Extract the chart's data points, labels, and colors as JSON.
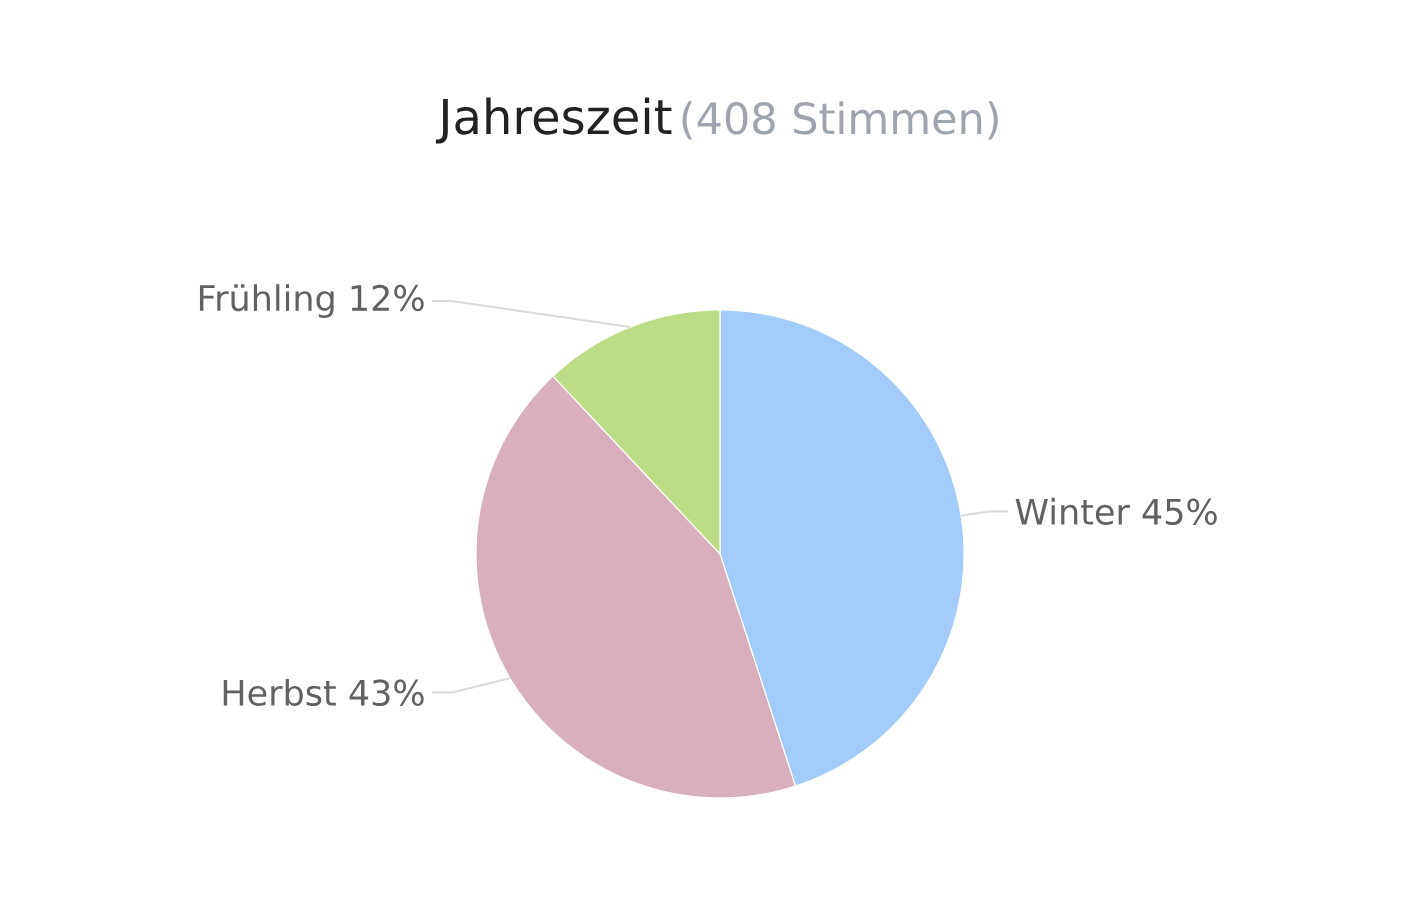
{
  "chart_data": {
    "type": "pie",
    "title": "Jahreszeit",
    "subtitle": "(408 Stimmen)",
    "categories": [
      "Winter",
      "Herbst",
      "Frühling"
    ],
    "values": [
      45,
      43,
      12
    ],
    "colors": [
      "#a3cbfc",
      "#d8b0bd",
      "#bcdd86"
    ],
    "value_labels": [
      "45%",
      "43%",
      "12%"
    ]
  }
}
